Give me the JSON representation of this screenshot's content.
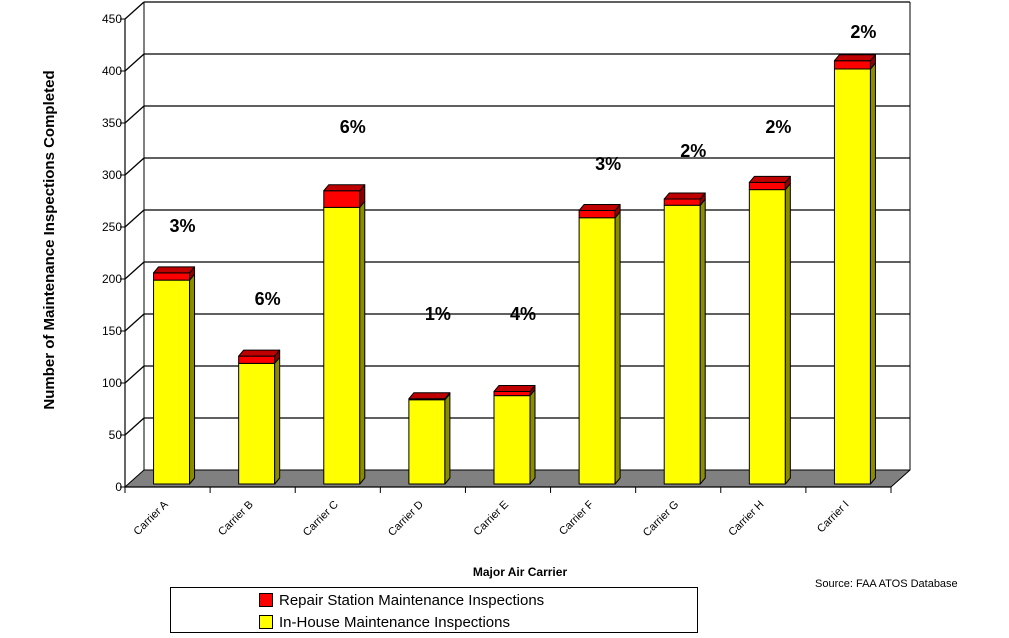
{
  "colors": {
    "repair_station": "#ff0000",
    "in_house": "#ffff00",
    "floor": "#808080",
    "grid": "#000000"
  },
  "source_text": "Source: FAA ATOS Database",
  "legend": {
    "repair_label": "Repair Station Maintenance Inspections",
    "inhouse_label": "In-House Maintenance Inspections"
  },
  "chart_data": {
    "type": "bar",
    "stacked": true,
    "three_d": true,
    "categories": [
      "Carrier A",
      "Carrier B",
      "Carrier C",
      "Carrier D",
      "Carrier E",
      "Carrier F",
      "Carrier G",
      "Carrier H",
      "Carrier I"
    ],
    "series": [
      {
        "name": "In-House Maintenance Inspections",
        "values": [
          196,
          116,
          266,
          81,
          85,
          256,
          268,
          283,
          399
        ]
      },
      {
        "name": "Repair Station Maintenance Inspections",
        "values": [
          7,
          7,
          16,
          1,
          4,
          7,
          6,
          7,
          8
        ]
      }
    ],
    "percent_labels": [
      "3%",
      "6%",
      "6%",
      "1%",
      "4%",
      "3%",
      "2%",
      "2%",
      "2%"
    ],
    "xlabel": "Major Air Carrier",
    "ylabel": "Number of Maintenance Inspections Completed",
    "ylim": [
      0,
      450
    ],
    "yticks": [
      0,
      50,
      100,
      150,
      200,
      250,
      300,
      350,
      400,
      450
    ],
    "grid": true,
    "legend_position": "bottom"
  }
}
